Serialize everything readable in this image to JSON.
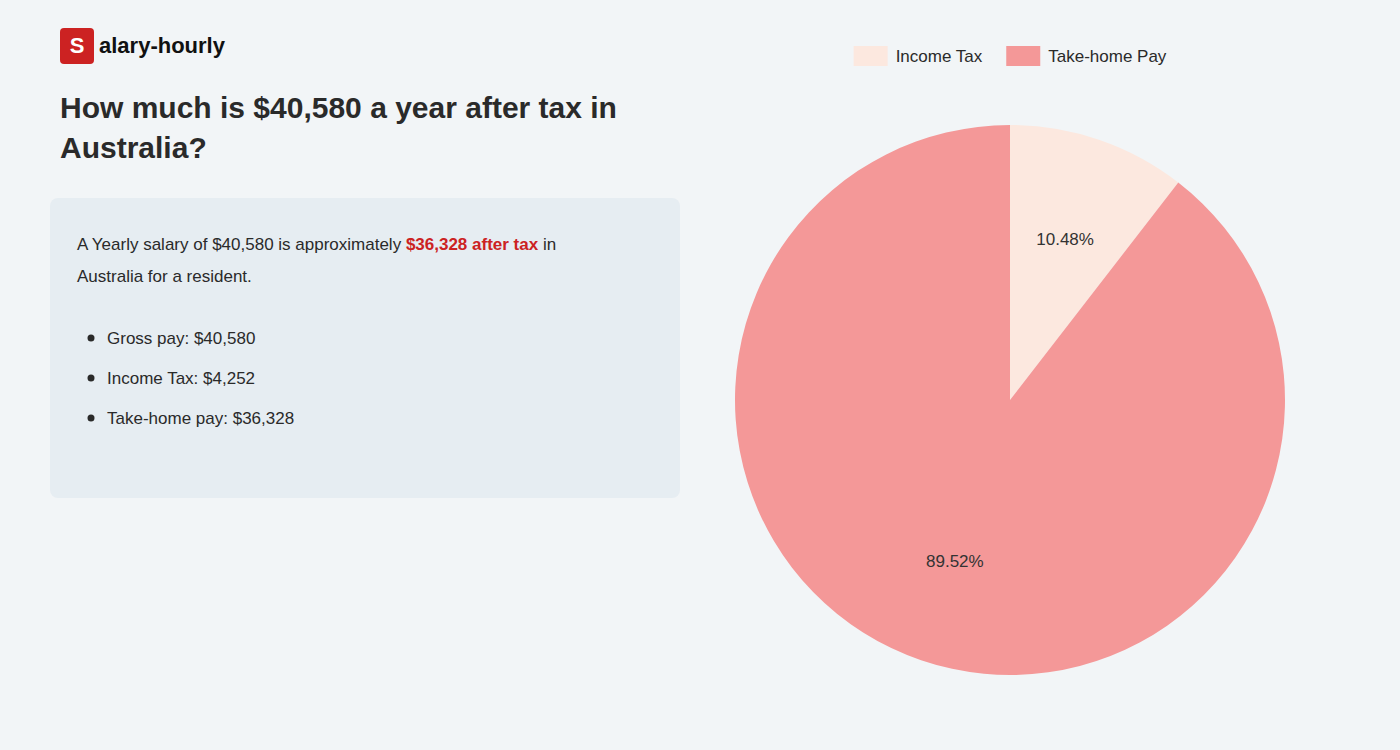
{
  "chart_data": {
    "type": "pie",
    "title": "How much is $40,580 a year after tax in Australia?",
    "categories": [
      "Income Tax",
      "Take-home Pay"
    ],
    "values": [
      10.48,
      89.52
    ],
    "value_labels": [
      "10.48%",
      "89.52%"
    ],
    "colors": [
      "#fce8df",
      "#f49898"
    ],
    "data_labels": true,
    "legend": "top",
    "annotations": [
      {
        "text": "S",
        "color": "#cc2222"
      },
      {
        "text": "alary-hourly"
      },
      {
        "text": "A Yearly salary of $40,580 is approximately "
      },
      {
        "text": "$36,328 after tax",
        "color": "#cc2222"
      },
      {
        "text": " in"
      },
      {
        "text": "Australia for a resident."
      },
      {
        "text": "Gross pay: $40,580"
      },
      {
        "text": "Income Tax: $4,252"
      },
      {
        "text": "Take-home pay: $36,328"
      }
    ]
  }
}
